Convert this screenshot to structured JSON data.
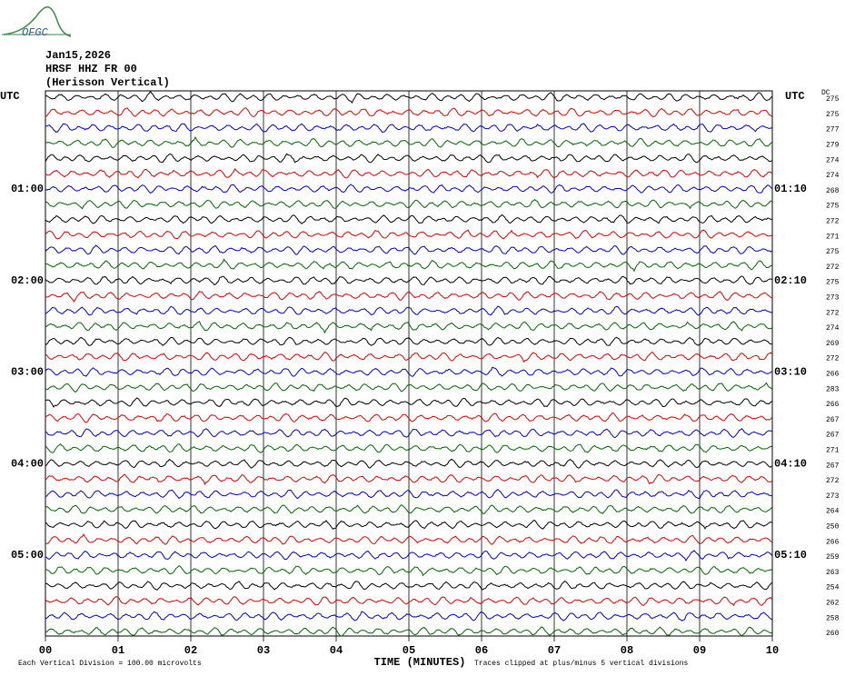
{
  "header": {
    "logo": "OFGC",
    "date": "Jan15,2026",
    "station": "HRSF HHZ FR 00",
    "location": "(Herisson Vertical)"
  },
  "left_axis": {
    "label": "UTC",
    "times": [
      "01:00",
      "02:00",
      "03:00",
      "04:00",
      "05:00"
    ]
  },
  "right_axis": {
    "label": "UTC",
    "times": [
      "01:10",
      "02:10",
      "03:10",
      "04:10",
      "05:10"
    ]
  },
  "dc": {
    "label": "DC",
    "values": [
      275,
      275,
      277,
      279,
      274,
      274,
      268,
      275,
      272,
      271,
      275,
      272,
      275,
      273,
      272,
      274,
      269,
      272,
      266,
      283,
      266,
      267,
      267,
      271,
      267,
      272,
      273,
      264,
      250,
      266,
      259,
      263,
      254,
      262,
      258,
      260
    ]
  },
  "x_axis": {
    "ticks": [
      "00",
      "01",
      "02",
      "03",
      "04",
      "05",
      "06",
      "07",
      "08",
      "09",
      "10"
    ],
    "title": "TIME (MINUTES)"
  },
  "footer": {
    "scale": "Each Vertical Division =  100.00 microvolts",
    "clipping": "Traces clipped at plus/minus 5 vertical divisions"
  }
}
